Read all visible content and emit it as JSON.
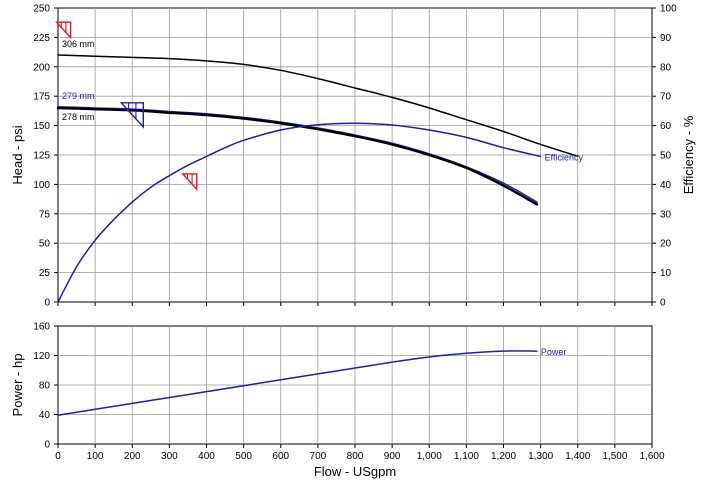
{
  "chart_data": [
    {
      "type": "line",
      "xlabel": "",
      "ylabel": "Head - psi",
      "y2label": "Efficiency - %",
      "xlim": [
        0,
        1600
      ],
      "ylim": [
        0,
        250
      ],
      "y2lim": [
        0,
        100
      ],
      "grid": true,
      "x_ticks": [
        "0",
        "100",
        "200",
        "300",
        "400",
        "500",
        "600",
        "700",
        "800",
        "900",
        "1,000",
        "1,100",
        "1,200",
        "1,300",
        "1,400",
        "1,500",
        "1,600"
      ],
      "y_ticks": [
        0,
        25,
        50,
        75,
        100,
        125,
        150,
        175,
        200,
        225,
        250
      ],
      "y2_ticks": [
        0,
        10,
        20,
        30,
        40,
        50,
        60,
        70,
        80,
        90,
        100
      ],
      "series": [
        {
          "name": "306 mm",
          "axis": "left",
          "color": "#000000",
          "width": 1.5,
          "points": [
            [
              0,
              210
            ],
            [
              100,
              209
            ],
            [
              200,
              208
            ],
            [
              300,
              207
            ],
            [
              400,
              205
            ],
            [
              500,
              202
            ],
            [
              600,
              197
            ],
            [
              700,
              190
            ],
            [
              800,
              182
            ],
            [
              900,
              174
            ],
            [
              1000,
              165
            ],
            [
              1100,
              155
            ],
            [
              1200,
              145
            ],
            [
              1300,
              134
            ],
            [
              1400,
              124
            ]
          ]
        },
        {
          "name": "279 mm",
          "axis": "left",
          "color": "#1f1fa8",
          "width": 1.5,
          "points": [
            [
              0,
              166
            ],
            [
              100,
              165
            ],
            [
              200,
              164
            ],
            [
              300,
              162
            ],
            [
              400,
              160
            ],
            [
              500,
              157
            ],
            [
              600,
              153
            ],
            [
              700,
              148
            ],
            [
              800,
              142
            ],
            [
              900,
              135
            ],
            [
              1000,
              126
            ],
            [
              1100,
              115
            ],
            [
              1200,
              101
            ],
            [
              1290,
              85
            ]
          ]
        },
        {
          "name": "278 mm",
          "axis": "left",
          "color": "#000000",
          "width": 2.5,
          "points": [
            [
              0,
              165
            ],
            [
              100,
              164
            ],
            [
              200,
              163
            ],
            [
              300,
              161
            ],
            [
              400,
              159
            ],
            [
              500,
              156
            ],
            [
              600,
              152
            ],
            [
              700,
              147
            ],
            [
              800,
              141
            ],
            [
              900,
              134
            ],
            [
              1000,
              125
            ],
            [
              1100,
              114
            ],
            [
              1200,
              99
            ],
            [
              1290,
              83
            ]
          ]
        },
        {
          "name": "Efficiency",
          "axis": "right",
          "color": "#1f1fa8",
          "width": 1.5,
          "points": [
            [
              0,
              0
            ],
            [
              50,
              12
            ],
            [
              100,
              21
            ],
            [
              150,
              28
            ],
            [
              200,
              34
            ],
            [
              250,
              39
            ],
            [
              300,
              43
            ],
            [
              350,
              46.5
            ],
            [
              400,
              49.5
            ],
            [
              450,
              52.5
            ],
            [
              500,
              55
            ],
            [
              600,
              58.5
            ],
            [
              700,
              60.3
            ],
            [
              800,
              60.8
            ],
            [
              900,
              60.2
            ],
            [
              1000,
              58.5
            ],
            [
              1100,
              56
            ],
            [
              1200,
              52.5
            ],
            [
              1300,
              49.5
            ]
          ]
        }
      ],
      "markers": [
        {
          "x": 15,
          "y": 232,
          "color": "#e41a1a"
        },
        {
          "x": 200,
          "y": 160,
          "color": "#1f1fa8"
        },
        {
          "x": 355,
          "y": 103,
          "color": "#e41a1a"
        }
      ]
    },
    {
      "type": "line",
      "xlabel": "Flow - USgpm",
      "ylabel": "Power - hp",
      "xlim": [
        0,
        1600
      ],
      "ylim": [
        0,
        160
      ],
      "grid": true,
      "x_ticks": [
        "0",
        "100",
        "200",
        "300",
        "400",
        "500",
        "600",
        "700",
        "800",
        "900",
        "1,000",
        "1,100",
        "1,200",
        "1,300",
        "1,400",
        "1,500",
        "1,600"
      ],
      "y_ticks": [
        0,
        40,
        80,
        120,
        160
      ],
      "series": [
        {
          "name": "Power",
          "color": "#1f1fa8",
          "width": 1.5,
          "points": [
            [
              0,
              39
            ],
            [
              100,
              47
            ],
            [
              200,
              55
            ],
            [
              300,
              63
            ],
            [
              400,
              71
            ],
            [
              500,
              79
            ],
            [
              600,
              87
            ],
            [
              700,
              95
            ],
            [
              800,
              103
            ],
            [
              900,
              111
            ],
            [
              1000,
              118
            ],
            [
              1100,
              123
            ],
            [
              1200,
              126
            ],
            [
              1290,
              126
            ]
          ]
        }
      ]
    }
  ]
}
